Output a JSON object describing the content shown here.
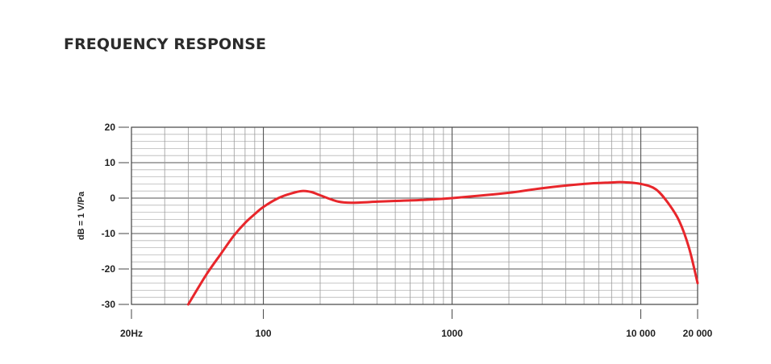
{
  "heading": "FREQUENCY RESPONSE",
  "chart_data": {
    "type": "line",
    "title": "",
    "xlabel": "",
    "ylabel": "dB = 1 V/Pa",
    "xscale": "log",
    "xlim": [
      20,
      20000
    ],
    "ylim": [
      -30,
      20
    ],
    "grid": true,
    "x_ticks": [
      {
        "value": 20,
        "label": "20Hz"
      },
      {
        "value": 100,
        "label": "100"
      },
      {
        "value": 1000,
        "label": "1000"
      },
      {
        "value": 10000,
        "label": "10 000"
      },
      {
        "value": 20000,
        "label": "20 000"
      }
    ],
    "y_ticks": [
      {
        "value": 20,
        "label": "20"
      },
      {
        "value": 10,
        "label": "10"
      },
      {
        "value": 0,
        "label": "0"
      },
      {
        "value": -10,
        "label": "-10"
      },
      {
        "value": -20,
        "label": "-20"
      },
      {
        "value": -30,
        "label": "-30"
      }
    ],
    "series": [
      {
        "color": "#e8262b",
        "x": [
          40,
          50,
          60,
          70,
          80,
          90,
          100,
          120,
          140,
          160,
          180,
          200,
          250,
          300,
          400,
          500,
          700,
          1000,
          2000,
          3000,
          5000,
          7000,
          8000,
          10000,
          12000,
          14000,
          16000,
          18000,
          20000
        ],
        "y": [
          -30,
          -21.5,
          -15.5,
          -10.5,
          -7,
          -4.5,
          -2.5,
          0,
          1.3,
          2,
          1.7,
          0.8,
          -1,
          -1.3,
          -1,
          -0.8,
          -0.5,
          0,
          1.5,
          2.8,
          4,
          4.4,
          4.5,
          4,
          2.5,
          -1.5,
          -6.5,
          -14,
          -24
        ]
      }
    ]
  }
}
